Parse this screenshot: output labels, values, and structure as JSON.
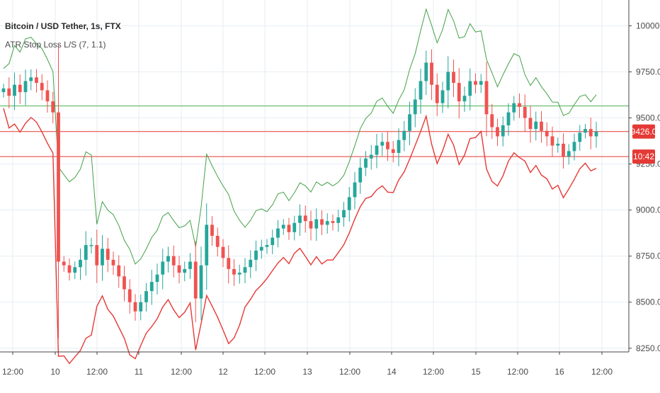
{
  "legend": {
    "symbol": "Bitcoin / USD Tether, 1s, FTX",
    "indicator": "ATR Stop Loss L/S (7, 1.1)"
  },
  "badges": {
    "price": "9426.0",
    "time": "10:42",
    "price_color": "#e53935",
    "time_color": "#e53935"
  },
  "colors": {
    "up_candle": "#26a69a",
    "down_candle": "#ef5350",
    "stop_long": "#e53935",
    "stop_short": "#43a047",
    "grid": "#e6edf3",
    "hline_green": "#4caf50",
    "hline_red": "#e53935"
  },
  "chart_data": {
    "type": "candlestick",
    "title": "Bitcoin / USD Tether, 1s, FTX",
    "indicator": "ATR Stop Loss L/S (7, 1.1)",
    "x_ticks": [
      "12:00",
      "10",
      "12:00",
      "11",
      "12:00",
      "12",
      "12:00",
      "13",
      "12:00",
      "14",
      "12:00",
      "15",
      "12:00",
      "16",
      "12:00"
    ],
    "y_ticks": [
      "10000.0",
      "9750.0",
      "9500.0",
      "9250.0",
      "9000.0",
      "8750.0",
      "8500.0",
      "8250.0"
    ],
    "y_tick_values": [
      10000,
      9750,
      9500,
      9250,
      9000,
      8750,
      8500,
      8250
    ],
    "ylim": [
      8230,
      10140
    ],
    "horizontal_lines": [
      {
        "value": 9565,
        "color": "#4caf50"
      },
      {
        "value": 9426,
        "color": "#e53935"
      },
      {
        "value": 9290,
        "color": "#e53935"
      }
    ],
    "last_price": 9426.0,
    "closes": [
      9660,
      9620,
      9680,
      9640,
      9700,
      9720,
      9690,
      9650,
      9590,
      9530,
      8720,
      8700,
      8660,
      8690,
      8730,
      8810,
      8810,
      8700,
      8790,
      8730,
      8700,
      8640,
      8570,
      8500,
      8450,
      8500,
      8560,
      8610,
      8650,
      8720,
      8750,
      8700,
      8660,
      8680,
      8720,
      8520,
      8700,
      8920,
      8860,
      8800,
      8740,
      8680,
      8650,
      8660,
      8690,
      8730,
      8780,
      8800,
      8810,
      8850,
      8900,
      8920,
      8880,
      8930,
      8970,
      8940,
      8900,
      8950,
      8920,
      8940,
      8930,
      8960,
      9000,
      9070,
      9150,
      9230,
      9280,
      9300,
      9350,
      9370,
      9330,
      9310,
      9380,
      9430,
      9520,
      9600,
      9700,
      9800,
      9680,
      9580,
      9650,
      9750,
      9690,
      9590,
      9620,
      9700,
      9680,
      9700,
      9520,
      9450,
      9400,
      9460,
      9530,
      9580,
      9560,
      9500,
      9440,
      9480,
      9430,
      9400,
      9350,
      9360,
      9290,
      9320,
      9370,
      9420,
      9440,
      9400,
      9426
    ]
  }
}
